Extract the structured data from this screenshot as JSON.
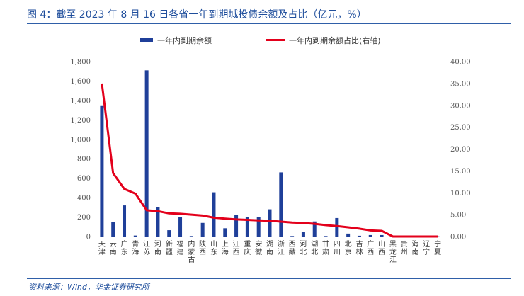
{
  "title": "图 4：截至 2023 年 8 月 16 日各省一年到期城投债余额及占比（亿元，%）",
  "source": "资料来源：Wind，华金证券研究所",
  "chart_data": {
    "type": "bar",
    "categories": [
      "天津",
      "云南",
      "广东",
      "青海",
      "江苏",
      "河南",
      "新疆",
      "福建",
      "内蒙古",
      "陕西",
      "山东",
      "上海",
      "江西",
      "重庆",
      "安徽",
      "湖南",
      "浙江",
      "西藏",
      "河北",
      "湖北",
      "甘肃",
      "四川",
      "北京",
      "吉林",
      "广西",
      "山西",
      "黑龙江",
      "贵州",
      "海南",
      "辽宁",
      "宁夏"
    ],
    "series": [
      {
        "name": "一年内到期余额",
        "type": "bar",
        "axis": "left",
        "color": "#1f3f99",
        "values": [
          1350,
          150,
          320,
          10,
          1710,
          300,
          65,
          200,
          5,
          140,
          455,
          85,
          220,
          200,
          200,
          280,
          660,
          5,
          45,
          155,
          5,
          190,
          30,
          8,
          15,
          15,
          2,
          2,
          2,
          2,
          2
        ]
      },
      {
        "name": "一年内到期余额占比(右轴)",
        "type": "line",
        "axis": "right",
        "color": "#e3001b",
        "values": [
          35.0,
          14.5,
          10.9,
          9.8,
          6.0,
          5.8,
          5.3,
          5.2,
          5.0,
          4.8,
          4.3,
          4.1,
          3.9,
          3.8,
          3.7,
          3.6,
          3.4,
          3.2,
          3.1,
          2.9,
          2.6,
          2.4,
          2.1,
          1.8,
          1.4,
          1.3,
          0.0,
          0.0,
          0.0,
          0.0,
          0.0
        ]
      }
    ],
    "left_axis": {
      "ylim": [
        0,
        1800
      ],
      "ticks": [
        "0",
        "200",
        "400",
        "600",
        "800",
        "1,000",
        "1,200",
        "1,400",
        "1,600",
        "1,800"
      ]
    },
    "right_axis": {
      "ylim": [
        0,
        40
      ],
      "ticks": [
        "0.00",
        "5.00",
        "10.00",
        "15.00",
        "20.00",
        "25.00",
        "30.00",
        "35.00",
        "40.00"
      ]
    },
    "legend_position": "top-center",
    "grid": false
  }
}
